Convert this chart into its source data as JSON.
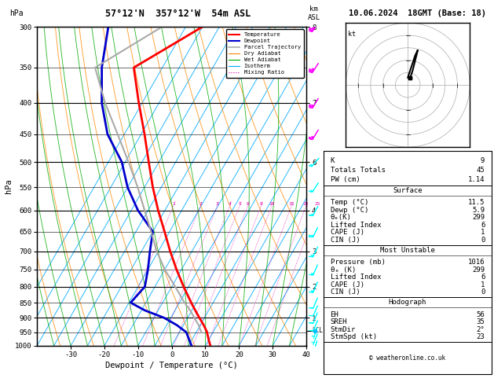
{
  "title_skewt": "57°12'N  357°12'W  54m ASL",
  "header": "10.06.2024  18GMT (Base: 18)",
  "xlabel": "Dewpoint / Temperature (°C)",
  "bg_color": "#ffffff",
  "pressure_ticks": [
    300,
    350,
    400,
    450,
    500,
    550,
    600,
    650,
    700,
    750,
    800,
    850,
    900,
    950,
    1000
  ],
  "temp_ticks": [
    -30,
    -20,
    -10,
    0,
    10,
    20,
    30,
    40
  ],
  "temperature_profile": {
    "pressure": [
      1000,
      975,
      950,
      925,
      900,
      875,
      850,
      800,
      750,
      700,
      650,
      600,
      550,
      500,
      450,
      400,
      350,
      300
    ],
    "temp": [
      11.5,
      9.8,
      8.2,
      6.0,
      3.5,
      1.0,
      -1.5,
      -6.5,
      -11.5,
      -16.5,
      -21.5,
      -27.0,
      -32.5,
      -38.0,
      -44.0,
      -51.0,
      -58.5,
      -45.0
    ],
    "color": "#ff0000",
    "linewidth": 2.0
  },
  "dewpoint_profile": {
    "pressure": [
      1000,
      975,
      950,
      925,
      900,
      875,
      850,
      800,
      750,
      700,
      650,
      600,
      550,
      500,
      450,
      400,
      350,
      300
    ],
    "temp": [
      5.9,
      4.0,
      2.0,
      -2.0,
      -7.0,
      -14.0,
      -19.5,
      -18.0,
      -20.0,
      -22.5,
      -25.0,
      -33.0,
      -40.0,
      -46.0,
      -55.0,
      -62.0,
      -68.0,
      -73.0
    ],
    "color": "#0000cc",
    "linewidth": 2.0
  },
  "parcel_profile": {
    "pressure": [
      950,
      925,
      900,
      875,
      850,
      800,
      750,
      700,
      650,
      600,
      550,
      500,
      450,
      400,
      350,
      300
    ],
    "temp": [
      6.5,
      4.5,
      2.0,
      -0.5,
      -3.5,
      -9.0,
      -15.0,
      -20.5,
      -25.5,
      -31.0,
      -37.0,
      -44.0,
      -52.0,
      -61.0,
      -70.0,
      -57.0
    ],
    "color": "#aaaaaa",
    "linewidth": 1.5
  },
  "skew": 45.0,
  "p_min": 300,
  "p_max": 1000,
  "T_min": -40,
  "T_max": 40,
  "isotherm_color": "#00aaff",
  "dry_adiabat_color": "#ff8800",
  "wet_adiabat_color": "#00aa00",
  "mixing_ratio_color": "#dd00aa",
  "mixing_ratio_values": [
    1,
    2,
    3,
    4,
    5,
    6,
    8,
    10,
    15,
    20,
    25
  ],
  "km_ticks": {
    "300": 8,
    "400": 7,
    "500": 6,
    "600": 4,
    "700": 3,
    "800": 2,
    "900": 1
  },
  "lcl_pressure": 945,
  "wind_levels_cyan": [
    1000,
    975,
    950,
    925,
    900,
    875,
    850,
    800,
    750,
    700,
    650,
    600,
    550,
    500
  ],
  "wind_levels_magenta": [
    450,
    400,
    350,
    300
  ],
  "wind_u_cyan": [
    1,
    2,
    2,
    3,
    3,
    4,
    4,
    5,
    6,
    7,
    8,
    8,
    9,
    10
  ],
  "wind_v_cyan": [
    3,
    5,
    6,
    7,
    8,
    9,
    10,
    12,
    14,
    15,
    16,
    15,
    14,
    12
  ],
  "wind_u_magenta": [
    12,
    15,
    18,
    20
  ],
  "wind_v_magenta": [
    20,
    25,
    28,
    30
  ],
  "info_box": {
    "K": 9,
    "Totals_Totals": 45,
    "PW_cm": 1.14,
    "Surface_Temp": 11.5,
    "Surface_Dewp": 5.9,
    "Surface_ThetaE": 299,
    "Surface_LiftedIndex": 6,
    "Surface_CAPE": 1,
    "Surface_CIN": 0,
    "MU_Pressure": 1016,
    "MU_ThetaE": 299,
    "MU_LiftedIndex": 6,
    "MU_CAPE": 1,
    "MU_CIN": 0,
    "Hodo_EH": 56,
    "Hodo_SREH": 35,
    "Hodo_StmDir": 2,
    "Hodo_StmSpd": 23
  },
  "legend_items": [
    {
      "label": "Temperature",
      "color": "#ff0000",
      "style": "-",
      "lw": 1.5
    },
    {
      "label": "Dewpoint",
      "color": "#0000cc",
      "style": "-",
      "lw": 1.5
    },
    {
      "label": "Parcel Trajectory",
      "color": "#aaaaaa",
      "style": "-",
      "lw": 1.2
    },
    {
      "label": "Dry Adiabat",
      "color": "#ff8800",
      "style": "-",
      "lw": 0.8
    },
    {
      "label": "Wet Adiabat",
      "color": "#00aa00",
      "style": "-",
      "lw": 0.8
    },
    {
      "label": "Isotherm",
      "color": "#00aaff",
      "style": "-",
      "lw": 0.8
    },
    {
      "label": "Mixing Ratio",
      "color": "#dd00aa",
      "style": ":",
      "lw": 0.8
    }
  ]
}
